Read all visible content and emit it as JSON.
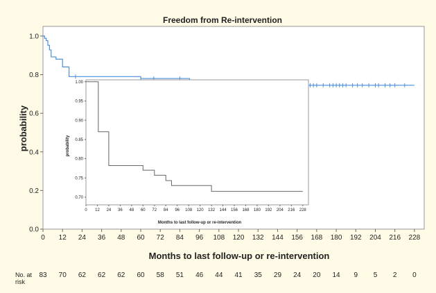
{
  "chart_data": [
    {
      "type": "line",
      "title": "Freedom from Re-intervention",
      "xlabel": "Months to last follow-up or re-intervention",
      "ylabel": "probability",
      "xlim": [
        0,
        234
      ],
      "ylim": [
        0,
        1.05
      ],
      "x_ticks": [
        "0",
        "12",
        "24",
        "36",
        "48",
        "60",
        "72",
        "84",
        "96",
        "108",
        "120",
        "132",
        "144",
        "156",
        "168",
        "180",
        "192",
        "204",
        "216",
        "228"
      ],
      "y_ticks": [
        "0.0",
        "0.2",
        "0.4",
        "0.6",
        "0.8",
        "1.0"
      ],
      "grid": false,
      "step": true,
      "color": "#4a90d9",
      "series": [
        {
          "points": [
            [
              0,
              1.0
            ],
            [
              1,
              0.988
            ],
            [
              2,
              0.976
            ],
            [
              3,
              0.952
            ],
            [
              4,
              0.928
            ],
            [
              5,
              0.892
            ],
            [
              8,
              0.88
            ],
            [
              12,
              0.84
            ],
            [
              16,
              0.79
            ],
            [
              42,
              0.79
            ],
            [
              60,
              0.78
            ],
            [
              90,
              0.77
            ],
            [
              92,
              0.752
            ],
            [
              120,
              0.745
            ],
            [
              228,
              0.745
            ]
          ],
          "censors": [
            20,
            60,
            68,
            84,
            90,
            92,
            93,
            95,
            97,
            98,
            100,
            102,
            105,
            110,
            115,
            122,
            124,
            126,
            128,
            131,
            134,
            136,
            140,
            145,
            150,
            154,
            160,
            164,
            166,
            168,
            172,
            176,
            178,
            180,
            182,
            184,
            186,
            190,
            193,
            196,
            200,
            204,
            206,
            210,
            213,
            216,
            222
          ]
        }
      ],
      "risk_table": {
        "label_line1": "No. at",
        "label_line2": "risk",
        "values": [
          "83",
          "70",
          "62",
          "62",
          "62",
          "60",
          "58",
          "51",
          "46",
          "44",
          "41",
          "35",
          "29",
          "24",
          "20",
          "14",
          "9",
          "5",
          "2",
          "0"
        ]
      }
    },
    {
      "type": "line",
      "xlabel": "Months to last follow-up or re-intervention",
      "ylabel": "probability",
      "xlim": [
        0,
        234
      ],
      "ylim": [
        0.68,
        1.005
      ],
      "x_ticks": [
        "0",
        "12",
        "24",
        "36",
        "48",
        "60",
        "72",
        "84",
        "96",
        "108",
        "120",
        "132",
        "144",
        "156",
        "168",
        "180",
        "192",
        "204",
        "216",
        "228"
      ],
      "y_ticks": [
        "0.70",
        "0.75",
        "0.80",
        "0.85",
        "0.90",
        "0.95",
        "1.00"
      ],
      "grid": false,
      "step": true,
      "color": "#666666",
      "series": [
        {
          "points": [
            [
              0,
              1.0
            ],
            [
              12,
              1.0
            ],
            [
              13,
              0.87
            ],
            [
              24,
              0.782
            ],
            [
              60,
              0.77
            ],
            [
              72,
              0.757
            ],
            [
              84,
              0.743
            ],
            [
              90,
              0.73
            ],
            [
              132,
              0.715
            ],
            [
              228,
              0.715
            ]
          ]
        }
      ]
    }
  ]
}
